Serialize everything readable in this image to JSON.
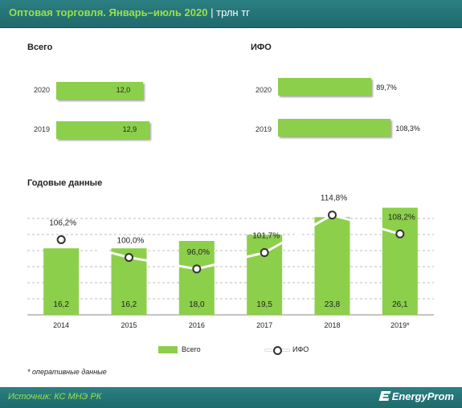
{
  "header": {
    "title": "Оптовая торговля. Январь–июль 2020",
    "separator": "|",
    "unit": "трлн тг"
  },
  "colors": {
    "bar": "#8ccf4a",
    "header_bg": "#1f6a6c",
    "accent_text": "#9ce04a",
    "line": "#ffffff",
    "marker_stroke": "#333333"
  },
  "chart_data": [
    {
      "type": "bar",
      "orientation": "horizontal",
      "title": "Всего",
      "categories": [
        "2020",
        "2019"
      ],
      "values": [
        12.0,
        12.9
      ],
      "value_labels": [
        "12,0",
        "12,9"
      ],
      "xlim": [
        0,
        14.5
      ]
    },
    {
      "type": "bar",
      "orientation": "horizontal",
      "title": "ИФО",
      "categories": [
        "2020",
        "2019"
      ],
      "values": [
        89.7,
        108.3
      ],
      "value_labels": [
        "89,7%",
        "108,3%"
      ],
      "xlim": [
        0,
        125
      ]
    },
    {
      "type": "bar",
      "title": "Годовые данные",
      "categories": [
        "2014",
        "2015",
        "2016",
        "2017",
        "2018",
        "2019*"
      ],
      "series": [
        {
          "name": "Всего",
          "type": "bar",
          "values": [
            16.2,
            16.2,
            18.0,
            19.5,
            23.8,
            26.1
          ],
          "value_labels": [
            "16,2",
            "16,2",
            "18,0",
            "19,5",
            "23,8",
            "26,1"
          ]
        },
        {
          "name": "ИФО",
          "type": "line",
          "values": [
            106.2,
            100.0,
            96.0,
            101.7,
            114.8,
            108.2
          ],
          "value_labels": [
            "106,2%",
            "100,0%",
            "96,0%",
            "101,7%",
            "114,8%",
            "108,2%"
          ]
        }
      ],
      "ylim_bars": [
        0,
        27
      ],
      "ylim_line": [
        80,
        122
      ],
      "grid": true,
      "legend": "bottom-center"
    }
  ],
  "footnote": "* оперативные данные",
  "footer": {
    "source": "Источник: КС МНЭ РК",
    "brand": "EnergyProm"
  }
}
